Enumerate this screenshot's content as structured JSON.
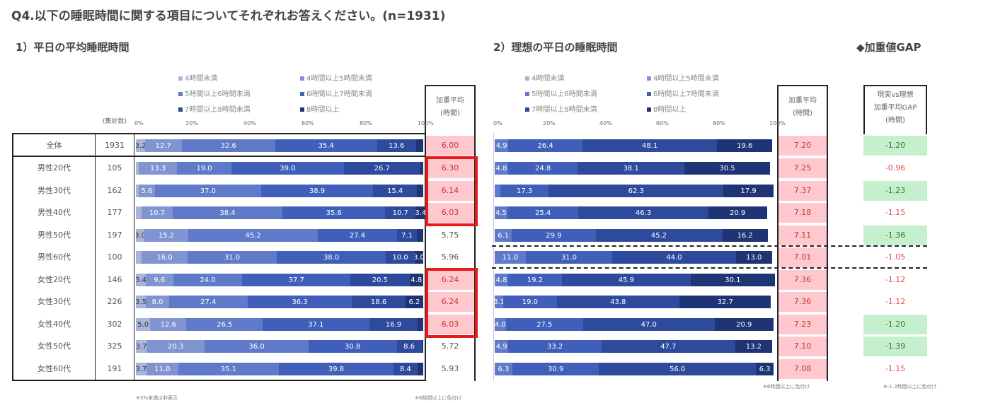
{
  "title": "Q4.以下の睡眠時間に関する項目についてそれぞれお答えください。(n=1931)",
  "chart1_title": "1）平日の平均睡眠時間",
  "chart2_title": "2）理想の平日の睡眠時間",
  "gap_title": "◆加重値GAP",
  "n_header": "(集計数)",
  "avg_header_1": "加重平均",
  "avg_header_2": "(時間)",
  "gap_header_1": "現実vs理想",
  "gap_header_2": "加重平均GAP",
  "gap_header_3": "(時間)",
  "note_left": "※3%未満は非表示",
  "note_mid": "※6時間以上に色付け",
  "note_right1": "※6時間以上に色付け",
  "note_right2": "※-1.2時間以上に色付け",
  "ticks": [
    "0%",
    "20%",
    "40%",
    "60%",
    "80%",
    "100%"
  ],
  "colors": {
    "c1": "#a9b4db",
    "c2": "#8094d2",
    "c3": "#5f7ac9",
    "c4": "#3f5fba",
    "c5": "#2e4a9c",
    "c6": "#1f3474",
    "pink": "#ffc7ce",
    "green": "#c6efce",
    "red": "#e51a1a",
    "gap_red": "#e05050",
    "gap_green": "#2e7d32"
  },
  "chart_data": [
    {
      "type": "bar",
      "title": "1）平日の平均睡眠時間",
      "stacked": true,
      "orientation": "horizontal",
      "xlim": [
        0,
        100
      ],
      "legend": [
        "4時間未満",
        "4時間以上5時間未満",
        "5時間以上6時間未満",
        "6時間以上7時間未満",
        "7時間以上8時間未満",
        "8時間以上"
      ],
      "legend_placement": "top",
      "rows": [
        {
          "label": "全体",
          "n": "1931",
          "segs": [
            [
              3.2,
              "3.2"
            ],
            [
              12.7,
              "12.7"
            ],
            [
              32.6,
              "32.6"
            ],
            [
              35.4,
              "35.4"
            ],
            [
              13.6,
              "13.6"
            ],
            [
              2.5,
              ""
            ]
          ],
          "avg": "6.00",
          "hl": true
        },
        {
          "label": "男性20代",
          "n": "105",
          "segs": [
            [
              1.0,
              ""
            ],
            [
              13.3,
              "13.3"
            ],
            [
              19.0,
              "19.0"
            ],
            [
              39.0,
              "39.0"
            ],
            [
              26.7,
              "26.7"
            ],
            [
              1.0,
              ""
            ]
          ],
          "avg": "6.30",
          "hl": true
        },
        {
          "label": "男性30代",
          "n": "162",
          "segs": [
            [
              1.0,
              ""
            ],
            [
              5.6,
              "5.6"
            ],
            [
              37.0,
              "37.0"
            ],
            [
              38.9,
              "38.9"
            ],
            [
              15.4,
              "15.4"
            ],
            [
              2.1,
              ""
            ]
          ],
          "avg": "6.14",
          "hl": true
        },
        {
          "label": "男性40代",
          "n": "177",
          "segs": [
            [
              2.0,
              ""
            ],
            [
              10.7,
              "10.7"
            ],
            [
              38.4,
              "38.4"
            ],
            [
              35.6,
              "35.6"
            ],
            [
              10.7,
              "10.7"
            ],
            [
              3.4,
              "3.4"
            ]
          ],
          "avg": "6.03",
          "hl": true
        },
        {
          "label": "男性50代",
          "n": "197",
          "segs": [
            [
              3.0,
              "3.0"
            ],
            [
              15.2,
              "15.2"
            ],
            [
              45.2,
              "45.2"
            ],
            [
              27.4,
              "27.4"
            ],
            [
              7.1,
              "7.1"
            ],
            [
              2.1,
              ""
            ]
          ],
          "avg": "5.75",
          "hl": false
        },
        {
          "label": "男性60代",
          "n": "100",
          "segs": [
            [
              2.0,
              ""
            ],
            [
              16.0,
              "16.0"
            ],
            [
              31.0,
              "31.0"
            ],
            [
              38.0,
              "38.0"
            ],
            [
              10.0,
              "10.0"
            ],
            [
              3.0,
              "3.0"
            ]
          ],
          "avg": "5.96",
          "hl": false
        },
        {
          "label": "女性20代",
          "n": "146",
          "segs": [
            [
              3.4,
              "3.4"
            ],
            [
              9.6,
              "9.6"
            ],
            [
              24.0,
              "24.0"
            ],
            [
              37.7,
              "37.7"
            ],
            [
              20.5,
              "20.5"
            ],
            [
              4.8,
              "4.8"
            ]
          ],
          "avg": "6.24",
          "hl": true
        },
        {
          "label": "女性30代",
          "n": "226",
          "segs": [
            [
              3.5,
              "3.5"
            ],
            [
              8.0,
              "8.0"
            ],
            [
              27.4,
              "27.4"
            ],
            [
              36.3,
              "36.3"
            ],
            [
              18.6,
              "18.6"
            ],
            [
              6.2,
              "6.2"
            ]
          ],
          "avg": "6.24",
          "hl": true
        },
        {
          "label": "女性40代",
          "n": "302",
          "segs": [
            [
              5.0,
              "5.0"
            ],
            [
              12.6,
              "12.6"
            ],
            [
              26.5,
              "26.5"
            ],
            [
              37.1,
              "37.1"
            ],
            [
              16.9,
              "16.9"
            ],
            [
              1.9,
              ""
            ]
          ],
          "avg": "6.03",
          "hl": true
        },
        {
          "label": "女性50代",
          "n": "325",
          "segs": [
            [
              3.7,
              "3.7"
            ],
            [
              20.3,
              "20.3"
            ],
            [
              36.0,
              "36.0"
            ],
            [
              30.8,
              "30.8"
            ],
            [
              8.6,
              "8.6"
            ],
            [
              0.6,
              ""
            ]
          ],
          "avg": "5.72",
          "hl": false
        },
        {
          "label": "女性60代",
          "n": "191",
          "segs": [
            [
              3.7,
              "3.7"
            ],
            [
              11.0,
              "11.0"
            ],
            [
              35.1,
              "35.1"
            ],
            [
              39.8,
              "39.8"
            ],
            [
              8.4,
              "8.4"
            ],
            [
              2.0,
              ""
            ]
          ],
          "avg": "5.93",
          "hl": false
        }
      ]
    },
    {
      "type": "bar",
      "title": "2）理想の平日の睡眠時間",
      "stacked": true,
      "orientation": "horizontal",
      "xlim": [
        0,
        100
      ],
      "legend": [
        "4時間未満",
        "4時間以上5時間未満",
        "5時間以上6時間未満",
        "6時間以上7時間未満",
        "7時間以上8時間未満",
        "8時間以上"
      ],
      "legend_placement": "top",
      "rows": [
        {
          "label": "全体",
          "segs": [
            [
              0,
              ""
            ],
            [
              0,
              ""
            ],
            [
              4.9,
              "4.9"
            ],
            [
              26.4,
              "26.4"
            ],
            [
              48.1,
              "48.1"
            ],
            [
              19.6,
              "19.6"
            ]
          ],
          "avg": "7.20",
          "gap": "-1.20",
          "gap_hl": true
        },
        {
          "label": "男性20代",
          "segs": [
            [
              0,
              ""
            ],
            [
              0,
              ""
            ],
            [
              4.8,
              "4.8"
            ],
            [
              24.8,
              "24.8"
            ],
            [
              38.1,
              "38.1"
            ],
            [
              30.5,
              "30.5"
            ]
          ],
          "avg": "7.25",
          "gap": "-0.96",
          "gap_hl": false
        },
        {
          "label": "男性30代",
          "segs": [
            [
              0,
              ""
            ],
            [
              0,
              ""
            ],
            [
              2.0,
              ""
            ],
            [
              17.3,
              "17.3"
            ],
            [
              62.3,
              "62.3"
            ],
            [
              17.9,
              "17.9"
            ]
          ],
          "avg": "7.37",
          "gap": "-1.23",
          "gap_hl": true
        },
        {
          "label": "男性40代",
          "segs": [
            [
              0,
              ""
            ],
            [
              0,
              ""
            ],
            [
              4.5,
              "4.5"
            ],
            [
              25.4,
              "25.4"
            ],
            [
              46.3,
              "46.3"
            ],
            [
              20.9,
              "20.9"
            ]
          ],
          "avg": "7.18",
          "gap": "-1.15",
          "gap_hl": false
        },
        {
          "label": "男性50代",
          "segs": [
            [
              0,
              ""
            ],
            [
              0,
              ""
            ],
            [
              6.1,
              "6.1"
            ],
            [
              29.9,
              "29.9"
            ],
            [
              45.2,
              "45.2"
            ],
            [
              16.2,
              "16.2"
            ]
          ],
          "avg": "7.11",
          "gap": "-1.36",
          "gap_hl": true
        },
        {
          "label": "男性60代",
          "segs": [
            [
              0,
              ""
            ],
            [
              0,
              ""
            ],
            [
              11.0,
              "11.0"
            ],
            [
              31.0,
              "31.0"
            ],
            [
              44.0,
              "44.0"
            ],
            [
              13.0,
              "13.0"
            ]
          ],
          "avg": "7.01",
          "gap": "-1.05",
          "gap_hl": false
        },
        {
          "label": "女性20代",
          "segs": [
            [
              0,
              ""
            ],
            [
              0,
              ""
            ],
            [
              4.8,
              "4.8"
            ],
            [
              19.2,
              "19.2"
            ],
            [
              45.9,
              "45.9"
            ],
            [
              30.1,
              "30.1"
            ]
          ],
          "avg": "7.36",
          "gap": "-1.12",
          "gap_hl": false
        },
        {
          "label": "女性30代",
          "segs": [
            [
              0,
              ""
            ],
            [
              0,
              ""
            ],
            [
              3.1,
              "3.1"
            ],
            [
              19.0,
              "19.0"
            ],
            [
              43.8,
              "43.8"
            ],
            [
              32.7,
              "32.7"
            ]
          ],
          "avg": "7.36",
          "gap": "-1.12",
          "gap_hl": false
        },
        {
          "label": "女性40代",
          "segs": [
            [
              0,
              ""
            ],
            [
              0,
              ""
            ],
            [
              4.0,
              "4.0"
            ],
            [
              27.5,
              "27.5"
            ],
            [
              47.0,
              "47.0"
            ],
            [
              20.9,
              "20.9"
            ]
          ],
          "avg": "7.23",
          "gap": "-1.20",
          "gap_hl": true
        },
        {
          "label": "女性50代",
          "segs": [
            [
              0,
              ""
            ],
            [
              0,
              ""
            ],
            [
              4.9,
              "4.9"
            ],
            [
              33.2,
              "33.2"
            ],
            [
              47.7,
              "47.7"
            ],
            [
              13.2,
              "13.2"
            ]
          ],
          "avg": "7.10",
          "gap": "-1.39",
          "gap_hl": true
        },
        {
          "label": "女性60代",
          "segs": [
            [
              0,
              ""
            ],
            [
              0,
              ""
            ],
            [
              6.3,
              "6.3"
            ],
            [
              30.9,
              "30.9"
            ],
            [
              56.0,
              "56.0"
            ],
            [
              6.3,
              "6.3"
            ]
          ],
          "avg": "7.08",
          "gap": "-1.15",
          "gap_hl": false
        }
      ]
    }
  ]
}
